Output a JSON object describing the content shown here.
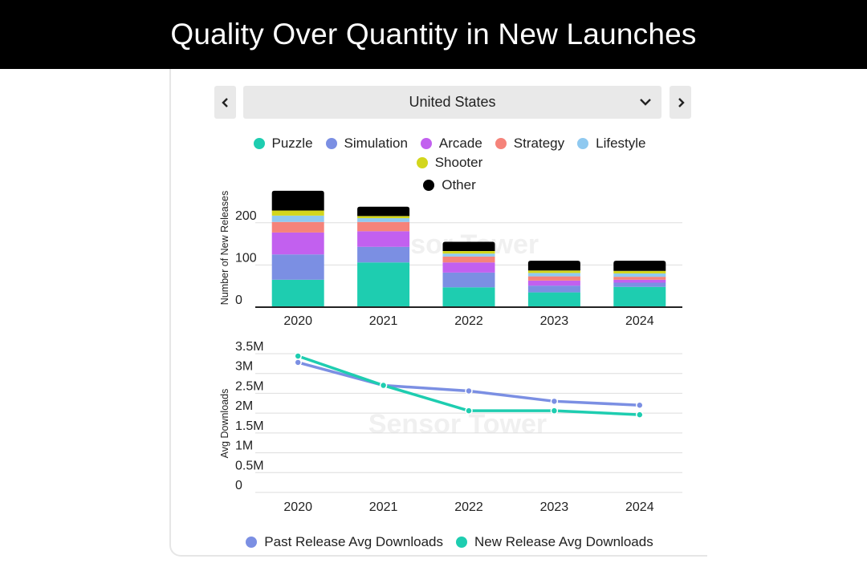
{
  "title": "Quality Over Quantity in New Launches",
  "region": "United States",
  "watermark": "Sensor Tower",
  "icons": {
    "prev": "chevron-left-icon",
    "next": "chevron-right-icon",
    "dropdown": "chevron-down-icon"
  },
  "chart_data": [
    {
      "type": "bar",
      "stacked": true,
      "categories": [
        "2020",
        "2021",
        "2022",
        "2023",
        "2024"
      ],
      "ylabel": "Number of New Releases",
      "xlabel": "",
      "ylim": [
        0,
        280
      ],
      "yticks": [
        "0",
        "100",
        "200"
      ],
      "ytick_values": [
        0,
        100,
        200
      ],
      "series": [
        {
          "name": "Puzzle",
          "color": "#1ecdb0",
          "values": [
            65,
            106,
            47,
            35,
            48
          ]
        },
        {
          "name": "Simulation",
          "color": "#7b8fe3",
          "values": [
            60,
            37,
            35,
            16,
            10
          ]
        },
        {
          "name": "Arcade",
          "color": "#c260ef",
          "values": [
            52,
            37,
            24,
            12,
            7
          ]
        },
        {
          "name": "Strategy",
          "color": "#f5837a",
          "values": [
            25,
            22,
            14,
            10,
            7
          ]
        },
        {
          "name": "Lifestyle",
          "color": "#8fc9f0",
          "values": [
            15,
            9,
            7,
            8,
            8
          ]
        },
        {
          "name": "Shooter",
          "color": "#d3d61c",
          "values": [
            12,
            5,
            6,
            6,
            6
          ]
        },
        {
          "name": "Other",
          "color": "#000000",
          "values": [
            47,
            22,
            22,
            23,
            24
          ]
        }
      ]
    },
    {
      "type": "line",
      "categories": [
        "2020",
        "2021",
        "2022",
        "2023",
        "2024"
      ],
      "ylabel": "Avg Downloads",
      "xlabel": "",
      "ylim": [
        0,
        3500000
      ],
      "yticks": [
        "0",
        "0.5M",
        "1M",
        "1.5M",
        "2M",
        "2.5M",
        "3M",
        "3.5M"
      ],
      "ytick_values": [
        0,
        500000,
        1000000,
        1500000,
        2000000,
        2500000,
        3000000,
        3500000
      ],
      "series": [
        {
          "name": "Past Release Avg Downloads",
          "color": "#7b8fe3",
          "values": [
            3280000,
            2700000,
            2560000,
            2300000,
            2200000
          ]
        },
        {
          "name": "New Release Avg Downloads",
          "color": "#1ecdb0",
          "values": [
            3440000,
            2700000,
            2060000,
            2060000,
            1960000
          ]
        }
      ]
    }
  ]
}
